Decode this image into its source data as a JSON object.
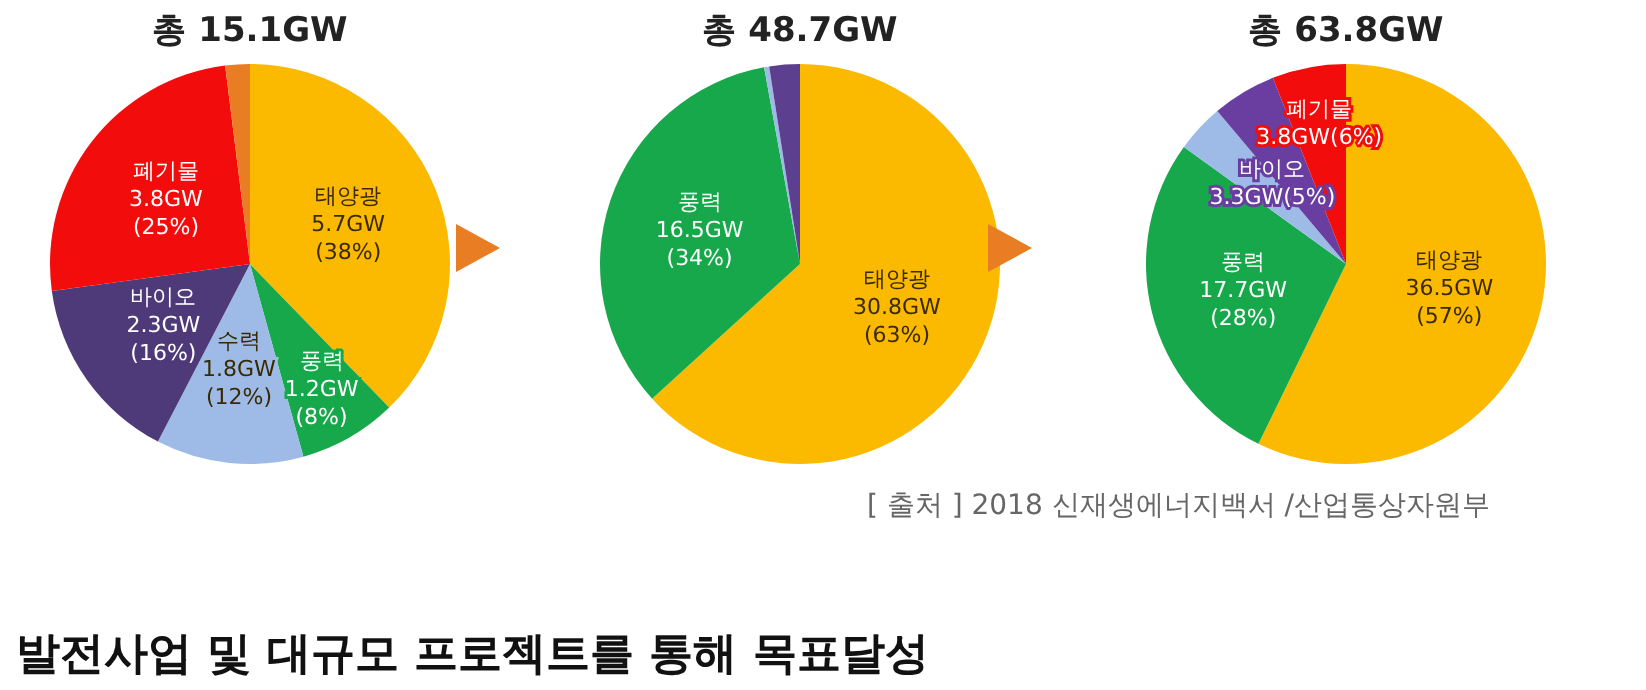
{
  "chart_data": [
    {
      "type": "pie",
      "title": "총 15.1GW",
      "categories": [
        "태양광",
        "풍력",
        "수력",
        "바이오",
        "폐기물",
        null
      ],
      "values": [
        5.7,
        1.2,
        1.8,
        2.3,
        3.8,
        0.3
      ],
      "colors": [
        "#fbb900",
        "#16a84a",
        "#9dbbe6",
        "#4e3979",
        "#f20c0c",
        "#e87d23"
      ],
      "value_labels": [
        "5.7GW (38%)",
        "1.2GW (8%)",
        "1.8GW (12%)",
        "2.3GW (16%)",
        "3.8GW (25%)",
        null
      ]
    },
    {
      "type": "pie",
      "title": "총 48.7GW",
      "categories": [
        "태양광",
        "풍력",
        null,
        null
      ],
      "values": [
        30.8,
        16.5,
        0.2,
        1.2
      ],
      "colors": [
        "#fbb900",
        "#16a84a",
        "#9dbbe6",
        "#5c3f8e"
      ],
      "value_labels": [
        "30.8GW (63%)",
        "16.5GW (34%)",
        null,
        null
      ]
    },
    {
      "type": "pie",
      "title": "총 63.8GW",
      "categories": [
        "태양광",
        "풍력",
        null,
        "바이오",
        "폐기물"
      ],
      "values": [
        36.5,
        17.7,
        2.5,
        3.3,
        3.8
      ],
      "colors": [
        "#fbb900",
        "#16a84a",
        "#9dbbe6",
        "#6a3ea0",
        "#f20c0c"
      ],
      "value_labels": [
        "36.5GW (57%)",
        "17.7GW (28%)",
        null,
        "3.3GW(5%)",
        "3.8GW(6%)"
      ],
      "annotations": [
        "[ 출처 ] 2018 신재생에너지백서 /산업통상자원부",
        "발전사업 및 대규모 프로젝트를 통해 목표달성"
      ]
    }
  ]
}
